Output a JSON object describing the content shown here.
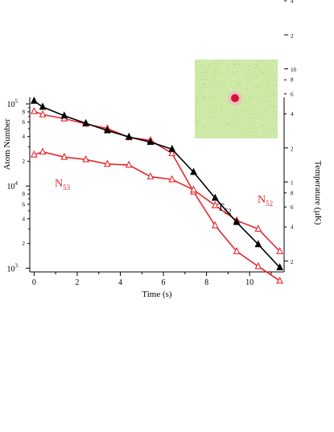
{
  "chart_data": {
    "type": "line",
    "xlabel": "Time (s)",
    "ylabel_left": "Atom Number",
    "ylabel_right": "Temperature (µK)",
    "xlim": [
      -0.2,
      11.6
    ],
    "ylim_left": [
      900,
      120000
    ],
    "ylim_right": [
      0.16,
      5.6
    ],
    "yscale": "log",
    "x_ticks": [
      0,
      2,
      4,
      6,
      8,
      10
    ],
    "left_major_ticks": [
      {
        "value": 1000,
        "base": "10",
        "exp": "3"
      },
      {
        "value": 10000,
        "base": "10",
        "exp": "4"
      },
      {
        "value": 100000,
        "base": "10",
        "exp": "5"
      }
    ],
    "left_minor_labels": [
      {
        "value": 2000,
        "label": "2"
      },
      {
        "value": 4000,
        "label": "4"
      },
      {
        "value": 6000,
        "label": "6"
      },
      {
        "value": 8000,
        "label": "8"
      },
      {
        "value": 20000,
        "label": "2"
      },
      {
        "value": 40000,
        "label": "4"
      },
      {
        "value": 60000,
        "label": "6"
      },
      {
        "value": 80000,
        "label": "8"
      },
      {
        "value": 200000,
        "label": "2"
      },
      {
        "value": 400000,
        "label": "4"
      },
      {
        "value": 600000,
        "label": "6"
      },
      {
        "value": 800000,
        "label": "8"
      }
    ],
    "right_labels": [
      {
        "value": 0.2,
        "label": "2",
        "size": "big"
      },
      {
        "value": 0.4,
        "label": "4",
        "size": "small"
      },
      {
        "value": 0.6,
        "label": "6",
        "size": "small"
      },
      {
        "value": 0.8,
        "label": "8",
        "size": "small"
      },
      {
        "value": 1,
        "label": "1",
        "size": "big"
      },
      {
        "value": 2,
        "label": "2",
        "size": "big"
      },
      {
        "value": 4,
        "label": "4",
        "size": "small"
      },
      {
        "value": 6,
        "label": "6",
        "size": "small"
      },
      {
        "value": 8,
        "label": "8",
        "size": "small"
      },
      {
        "value": 10,
        "label": "10",
        "size": "big"
      },
      {
        "value": 20,
        "label": "2",
        "size": "big"
      },
      {
        "value": 40,
        "label": "4",
        "size": "small"
      }
    ],
    "series": [
      {
        "name": "N52",
        "axis": "left",
        "color": "#e8262d",
        "marker": "open-triangle",
        "x": [
          0,
          0.4,
          1.4,
          2.4,
          3.4,
          4.4,
          5.4,
          6.4,
          7.4,
          8.4,
          9.4,
          10.4,
          11.4
        ],
        "y": [
          81000,
          74000,
          66000,
          57000,
          50000,
          39000,
          36000,
          25000,
          8500,
          3300,
          1600,
          1050,
          700
        ]
      },
      {
        "name": "N53",
        "axis": "left",
        "color": "#e8262d",
        "marker": "open-triangle",
        "x": [
          0,
          0.4,
          1.4,
          2.4,
          3.4,
          4.4,
          5.4,
          6.4,
          7.4,
          8.4,
          9.4,
          10.4,
          11.4
        ],
        "y": [
          24000,
          26000,
          22500,
          21000,
          18500,
          18000,
          13000,
          12000,
          9000,
          5800,
          3800,
          3000,
          1600
        ]
      },
      {
        "name": "T52",
        "axis": "right",
        "color": "#000000",
        "marker": "filled-triangle",
        "x": [
          0,
          0.4,
          1.4,
          2.4,
          3.4,
          4.4,
          5.4,
          6.4,
          7.4,
          8.4,
          9.4,
          10.4,
          11.4
        ],
        "y": [
          5.2,
          4.6,
          3.85,
          3.3,
          2.85,
          2.5,
          2.25,
          1.95,
          1.22,
          0.72,
          0.44,
          0.28,
          0.175
        ]
      }
    ],
    "annotations": [
      {
        "series": "N53",
        "base": "N",
        "sub": "53",
        "color": "#e8262d"
      },
      {
        "series": "T52",
        "base": "T",
        "sub": "52",
        "color": "#000000"
      },
      {
        "series": "N52",
        "base": "N",
        "sub": "52",
        "color": "#e8262d"
      }
    ]
  },
  "inset": {
    "background": "#c8e6a0",
    "spot_color": "#d8123a"
  }
}
